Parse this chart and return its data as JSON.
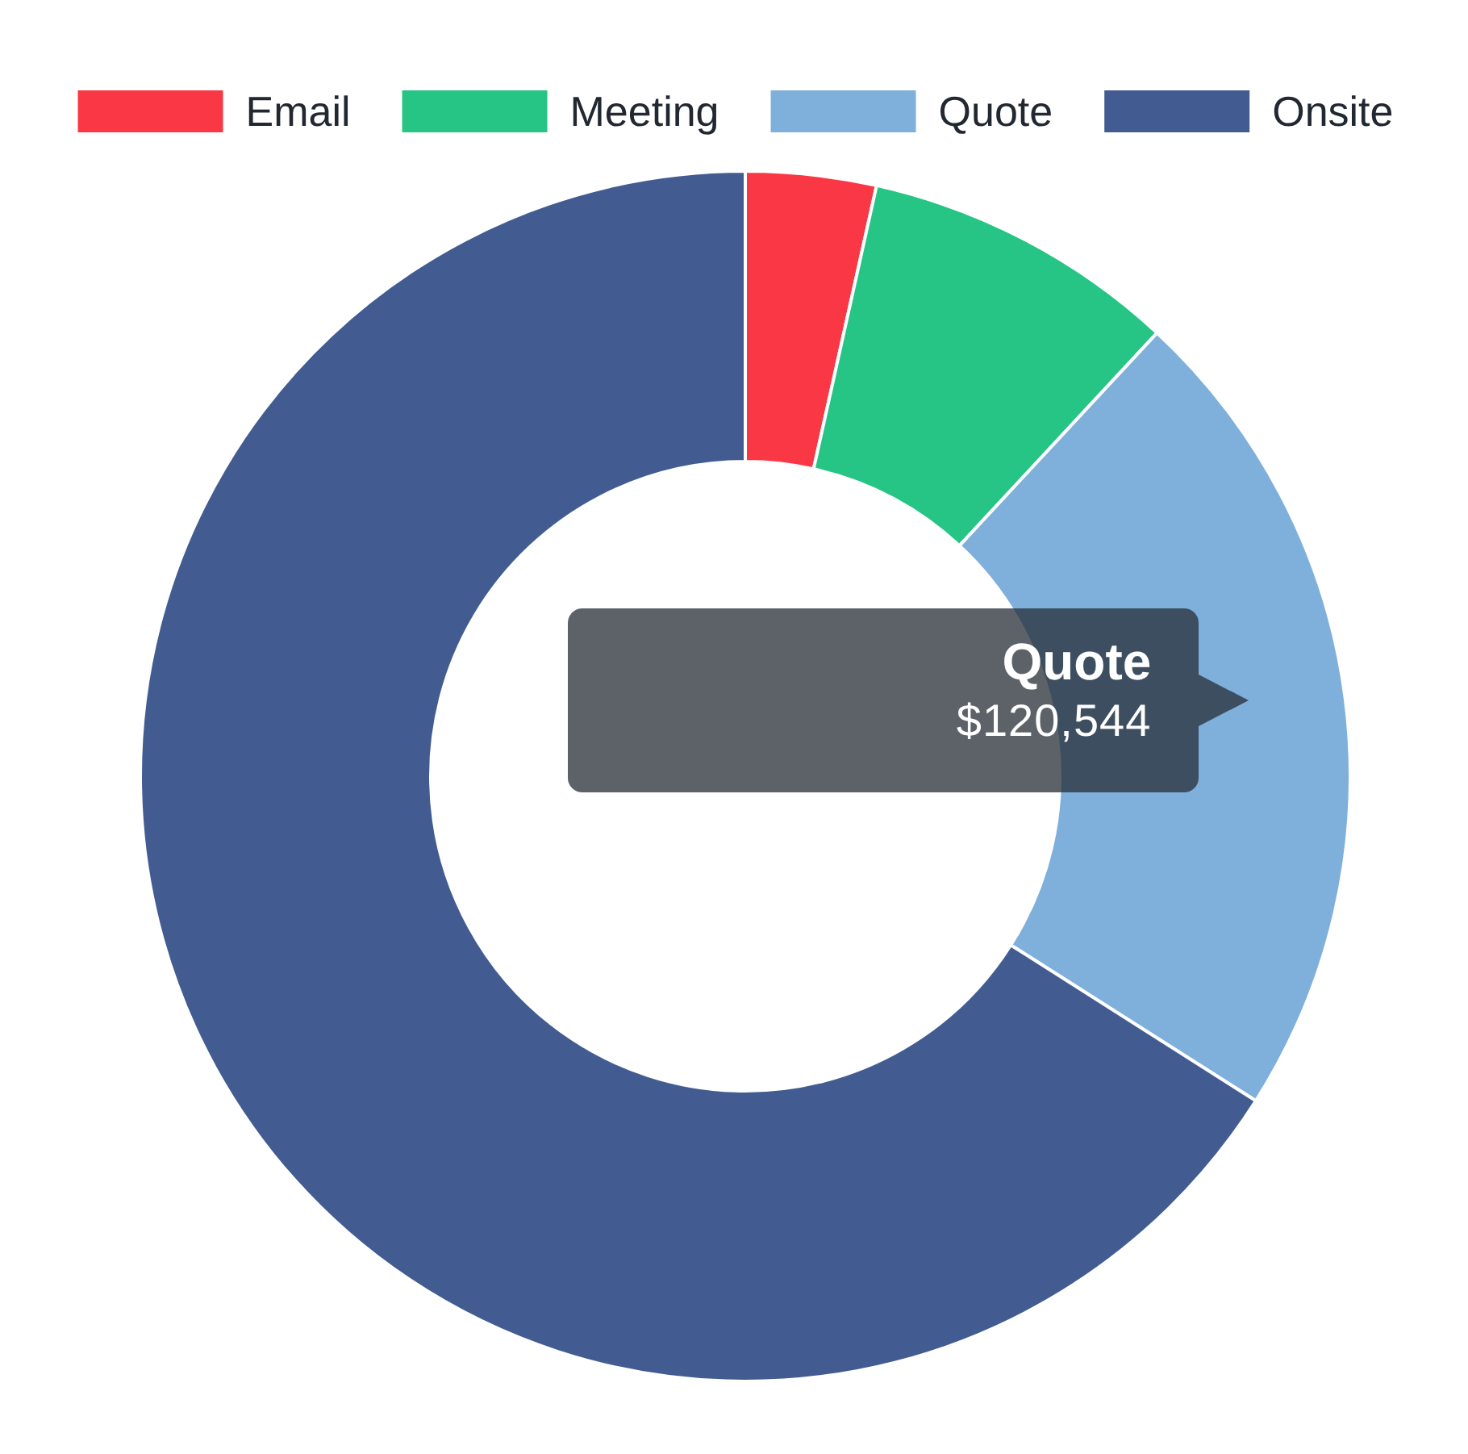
{
  "chart_data": {
    "type": "donut",
    "categories": [
      "Email",
      "Meeting",
      "Quote",
      "Onsite"
    ],
    "values": [
      19000,
      46000,
      120544,
      360000
    ],
    "colors": [
      "#fa3845",
      "#26c485",
      "#7fb0dc",
      "#425c92"
    ],
    "value_labels": [
      null,
      null,
      "$120,544",
      null
    ],
    "legend": "top"
  }
}
